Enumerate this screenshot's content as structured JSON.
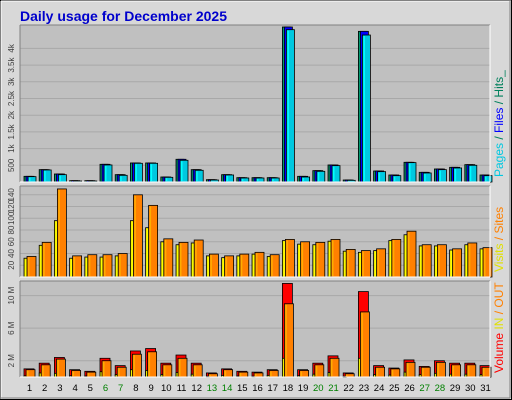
{
  "title": "Daily usage for December 2025",
  "days": [
    "1",
    "2",
    "3",
    "4",
    "5",
    "6",
    "7",
    "8",
    "9",
    "10",
    "11",
    "12",
    "13",
    "14",
    "15",
    "16",
    "17",
    "18",
    "19",
    "20",
    "21",
    "22",
    "23",
    "24",
    "25",
    "26",
    "27",
    "28",
    "29",
    "30",
    "31"
  ],
  "weekend_days": [
    "6",
    "7",
    "13",
    "14",
    "20",
    "21",
    "27",
    "28"
  ],
  "colors": {
    "title": "#0000cc",
    "weekday_label": "#000000",
    "weekend_label": "#008000",
    "hits": "#00805c",
    "files": "#0000ff",
    "pages": "#00c8e0",
    "visits": "#e0e000",
    "sites": "#ff8000",
    "kbytes": "#ff0000",
    "kb_in": "#e0e000",
    "kb_out": "#ff8000",
    "panel_bg": "#c0c0c0",
    "frame_bg": "#d8d8d8"
  },
  "legends": {
    "top": [
      {
        "text": "Pages",
        "color_key": "pages"
      },
      {
        "text": "/",
        "color_key": "hits"
      },
      {
        "text": "Files",
        "color_key": "files"
      },
      {
        "text": "/",
        "color_key": "hits"
      },
      {
        "text": "Hits_",
        "color_key": "hits"
      }
    ],
    "middle": [
      {
        "text": "Visits",
        "color_key": "visits"
      },
      {
        "text": "/",
        "color_key": "sites"
      },
      {
        "text": "Sites",
        "color_key": "sites"
      }
    ],
    "bottom": [
      {
        "text": "Volume",
        "color_key": "kbytes"
      },
      {
        "text": "IN",
        "color_key": "kb_in"
      },
      {
        "text": "/",
        "color_key": "kb_out"
      },
      {
        "text": "OUT",
        "color_key": "kb_out"
      }
    ]
  },
  "chart_data": [
    {
      "type": "bar",
      "panel": "top",
      "ylim": [
        0,
        4700
      ],
      "yticks": [
        500,
        1000,
        1500,
        2000,
        2500,
        3000,
        3500,
        4000
      ],
      "ytick_labels": [
        "500",
        "1k",
        "1.5k",
        "2k",
        "2.5k",
        "3k",
        "3.5k",
        "4k"
      ],
      "series": [
        {
          "name": "Hits",
          "color_key": "hits",
          "values": [
            170,
            370,
            240,
            40,
            40,
            530,
            220,
            570,
            570,
            150,
            680,
            370,
            70,
            220,
            130,
            130,
            130,
            4640,
            170,
            340,
            510,
            60,
            4510,
            330,
            210,
            590,
            290,
            390,
            440,
            520,
            210
          ]
        },
        {
          "name": "Files",
          "color_key": "files",
          "values": [
            170,
            370,
            240,
            40,
            40,
            530,
            220,
            570,
            570,
            150,
            680,
            370,
            70,
            220,
            130,
            130,
            130,
            4640,
            170,
            340,
            510,
            60,
            4510,
            330,
            210,
            590,
            290,
            390,
            440,
            520,
            210
          ]
        },
        {
          "name": "Pages",
          "color_key": "pages",
          "values": [
            160,
            360,
            220,
            30,
            30,
            510,
            200,
            560,
            560,
            140,
            650,
            350,
            60,
            210,
            120,
            120,
            120,
            4560,
            150,
            320,
            490,
            50,
            4400,
            310,
            190,
            580,
            270,
            370,
            420,
            500,
            190
          ]
        }
      ]
    },
    {
      "type": "bar",
      "panel": "middle",
      "ylim": [
        0,
        155
      ],
      "yticks": [
        20,
        40,
        60,
        80,
        100,
        120,
        140
      ],
      "ytick_labels": [
        "20",
        "40",
        "60",
        "80",
        "100",
        "120",
        "140"
      ],
      "series": [
        {
          "name": "Visits",
          "color_key": "visits",
          "values": [
            32,
            54,
            96,
            32,
            34,
            34,
            36,
            96,
            84,
            60,
            55,
            58,
            36,
            33,
            36,
            39,
            35,
            62,
            56,
            55,
            61,
            44,
            42,
            45,
            62,
            72,
            53,
            53,
            46,
            55,
            48
          ]
        },
        {
          "name": "Sites",
          "color_key": "sites",
          "values": [
            35,
            59,
            150,
            36,
            38,
            38,
            40,
            140,
            122,
            65,
            59,
            63,
            39,
            36,
            39,
            42,
            38,
            64,
            60,
            59,
            64,
            47,
            45,
            48,
            64,
            78,
            55,
            55,
            48,
            58,
            50
          ]
        }
      ]
    },
    {
      "type": "bar",
      "panel": "bottom",
      "ylim": [
        0,
        11800000
      ],
      "yticks": [
        2000000,
        6000000,
        10000000
      ],
      "ytick_labels": [
        "2 M",
        "6 M",
        "10 M"
      ],
      "series": [
        {
          "name": "Volume",
          "color_key": "kbytes",
          "values": [
            1000000,
            1700000,
            2400000,
            900000,
            700000,
            2300000,
            1400000,
            3200000,
            3500000,
            1700000,
            2700000,
            1700000,
            500000,
            1000000,
            700000,
            600000,
            900000,
            11500000,
            900000,
            1700000,
            2600000,
            500000,
            10500000,
            1400000,
            1100000,
            2100000,
            1300000,
            2000000,
            1700000,
            1700000,
            1400000
          ]
        },
        {
          "name": "IN",
          "color_key": "kb_in",
          "values": [
            150000,
            500000,
            450000,
            150000,
            120000,
            650000,
            300000,
            900000,
            800000,
            300000,
            550000,
            350000,
            100000,
            200000,
            120000,
            100000,
            200000,
            2300000,
            150000,
            350000,
            550000,
            80000,
            2300000,
            300000,
            250000,
            600000,
            300000,
            450000,
            350000,
            350000,
            300000
          ]
        },
        {
          "name": "OUT",
          "color_key": "kb_out",
          "values": [
            900000,
            1500000,
            2200000,
            800000,
            600000,
            2000000,
            1200000,
            2800000,
            3100000,
            1500000,
            2300000,
            1500000,
            400000,
            900000,
            600000,
            500000,
            800000,
            9000000,
            800000,
            1500000,
            2300000,
            400000,
            8000000,
            1200000,
            1000000,
            1800000,
            1200000,
            1800000,
            1500000,
            1500000,
            1200000
          ]
        }
      ]
    }
  ]
}
